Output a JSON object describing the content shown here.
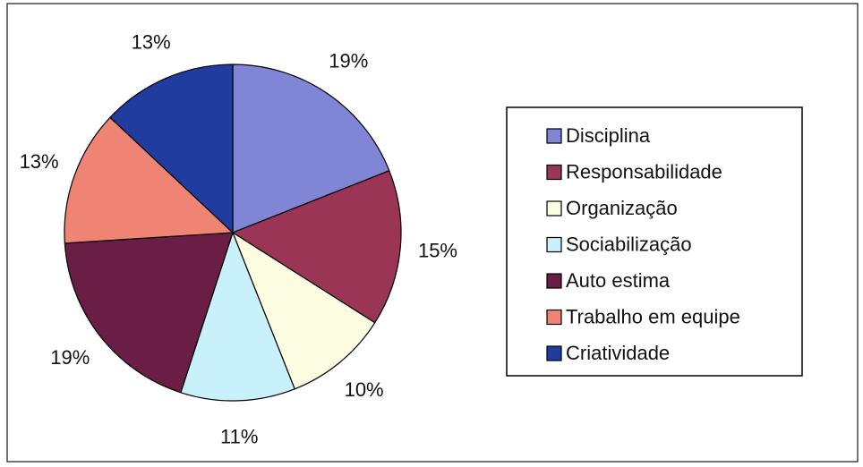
{
  "chart_data": {
    "type": "pie",
    "categories": [
      "Disciplina",
      "Responsabilidade",
      "Organização",
      "Sociabilização",
      "Auto estima",
      "Trabalho em equipe",
      "Criatividade"
    ],
    "values": [
      19,
      15,
      10,
      11,
      19,
      13,
      13
    ],
    "value_labels": [
      "19%",
      "15%",
      "10%",
      "11%",
      "19%",
      "13%",
      "13%"
    ],
    "colors": [
      "#8085d6",
      "#9a3555",
      "#fcfce0",
      "#c9f1fb",
      "#6a1e45",
      "#ef8474",
      "#1f3c9e"
    ],
    "legend": "right"
  }
}
